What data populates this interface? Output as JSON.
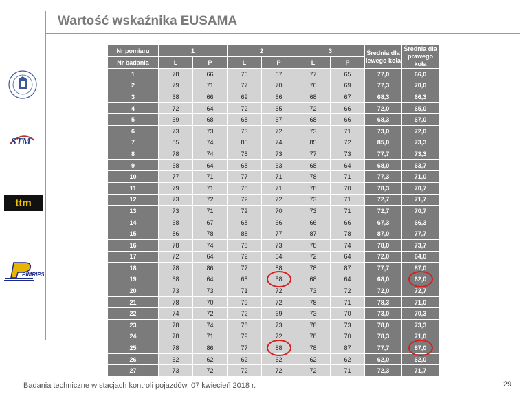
{
  "slide": {
    "title": "Wartość wskaźnika EUSAMA",
    "footer": "Badania techniczne w stacjach kontroli pojazdów, 07 kwiecień 2018 r.",
    "page_number": "29"
  },
  "logos": [
    "university-seal-logo",
    "stm-logo",
    "ttm-logo",
    "pimrips-logo"
  ],
  "logo_text": {
    "ttm": "ttm",
    "stm": "STM",
    "pim": "PIMRIPS"
  },
  "table": {
    "nr_pomiaru_label": "Nr pomiaru",
    "nr_badania_label": "Nr badania",
    "measurement_groups": [
      "1",
      "2",
      "3"
    ],
    "side_labels": [
      "L",
      "P",
      "L",
      "P",
      "L",
      "P"
    ],
    "avg_left_label": "Średnia dla lewego koła",
    "avg_right_label": "Średnia dla prawego koła",
    "rows": [
      {
        "nr": "1",
        "v": [
          "78",
          "66",
          "76",
          "67",
          "77",
          "65"
        ],
        "avg_l": "77,0",
        "avg_r": "66,0"
      },
      {
        "nr": "2",
        "v": [
          "79",
          "71",
          "77",
          "70",
          "76",
          "69"
        ],
        "avg_l": "77,3",
        "avg_r": "70,0"
      },
      {
        "nr": "3",
        "v": [
          "68",
          "66",
          "69",
          "66",
          "68",
          "67"
        ],
        "avg_l": "68,3",
        "avg_r": "66,3"
      },
      {
        "nr": "4",
        "v": [
          "72",
          "64",
          "72",
          "65",
          "72",
          "66"
        ],
        "avg_l": "72,0",
        "avg_r": "65,0"
      },
      {
        "nr": "5",
        "v": [
          "69",
          "68",
          "68",
          "67",
          "68",
          "66"
        ],
        "avg_l": "68,3",
        "avg_r": "67,0"
      },
      {
        "nr": "6",
        "v": [
          "73",
          "73",
          "73",
          "72",
          "73",
          "71"
        ],
        "avg_l": "73,0",
        "avg_r": "72,0"
      },
      {
        "nr": "7",
        "v": [
          "85",
          "74",
          "85",
          "74",
          "85",
          "72"
        ],
        "avg_l": "85,0",
        "avg_r": "73,3"
      },
      {
        "nr": "8",
        "v": [
          "78",
          "74",
          "78",
          "73",
          "77",
          "73"
        ],
        "avg_l": "77,7",
        "avg_r": "73,3"
      },
      {
        "nr": "9",
        "v": [
          "68",
          "64",
          "68",
          "63",
          "68",
          "64"
        ],
        "avg_l": "68,0",
        "avg_r": "63,7"
      },
      {
        "nr": "10",
        "v": [
          "77",
          "71",
          "77",
          "71",
          "78",
          "71"
        ],
        "avg_l": "77,3",
        "avg_r": "71,0"
      },
      {
        "nr": "11",
        "v": [
          "79",
          "71",
          "78",
          "71",
          "78",
          "70"
        ],
        "avg_l": "78,3",
        "avg_r": "70,7"
      },
      {
        "nr": "12",
        "v": [
          "73",
          "72",
          "72",
          "72",
          "73",
          "71"
        ],
        "avg_l": "72,7",
        "avg_r": "71,7"
      },
      {
        "nr": "13",
        "v": [
          "73",
          "71",
          "72",
          "70",
          "73",
          "71"
        ],
        "avg_l": "72,7",
        "avg_r": "70,7"
      },
      {
        "nr": "14",
        "v": [
          "68",
          "67",
          "68",
          "66",
          "66",
          "66"
        ],
        "avg_l": "67,3",
        "avg_r": "66,3"
      },
      {
        "nr": "15",
        "v": [
          "86",
          "78",
          "88",
          "77",
          "87",
          "78"
        ],
        "avg_l": "87,0",
        "avg_r": "77,7"
      },
      {
        "nr": "16",
        "v": [
          "78",
          "74",
          "78",
          "73",
          "78",
          "74"
        ],
        "avg_l": "78,0",
        "avg_r": "73,7"
      },
      {
        "nr": "17",
        "v": [
          "72",
          "64",
          "72",
          "64",
          "72",
          "64"
        ],
        "avg_l": "72,0",
        "avg_r": "64,0"
      },
      {
        "nr": "18",
        "v": [
          "78",
          "86",
          "77",
          "88",
          "78",
          "87"
        ],
        "avg_l": "77,7",
        "avg_r": "87,0"
      },
      {
        "nr": "19",
        "v": [
          "68",
          "64",
          "68",
          "58",
          "68",
          "64"
        ],
        "avg_l": "68,0",
        "avg_r": "62,0"
      },
      {
        "nr": "20",
        "v": [
          "73",
          "73",
          "71",
          "72",
          "73",
          "72"
        ],
        "avg_l": "72,0",
        "avg_r": "72,7"
      },
      {
        "nr": "21",
        "v": [
          "78",
          "70",
          "79",
          "72",
          "78",
          "71"
        ],
        "avg_l": "78,3",
        "avg_r": "71,0"
      },
      {
        "nr": "22",
        "v": [
          "74",
          "72",
          "72",
          "69",
          "73",
          "70"
        ],
        "avg_l": "73,0",
        "avg_r": "70,3"
      },
      {
        "nr": "23",
        "v": [
          "78",
          "74",
          "78",
          "73",
          "78",
          "73"
        ],
        "avg_l": "78,0",
        "avg_r": "73,3"
      },
      {
        "nr": "24",
        "v": [
          "78",
          "71",
          "79",
          "72",
          "78",
          "70"
        ],
        "avg_l": "78,3",
        "avg_r": "71,0"
      },
      {
        "nr": "25",
        "v": [
          "78",
          "86",
          "77",
          "88",
          "78",
          "87"
        ],
        "avg_l": "77,7",
        "avg_r": "87,0"
      },
      {
        "nr": "26",
        "v": [
          "62",
          "62",
          "62",
          "62",
          "62",
          "62"
        ],
        "avg_l": "62,0",
        "avg_r": "62,0"
      },
      {
        "nr": "27",
        "v": [
          "73",
          "72",
          "72",
          "72",
          "72",
          "71"
        ],
        "avg_l": "72,3",
        "avg_r": "71,7"
      }
    ],
    "highlight_color": "#d62020",
    "highlighted_cells": [
      {
        "row": "19",
        "column": "2-P",
        "value": "58"
      },
      {
        "row": "19",
        "column": "avg_r",
        "value": "62,0"
      },
      {
        "row": "25",
        "column": "2-P",
        "value": "88"
      },
      {
        "row": "25",
        "column": "avg_r",
        "value": "87,0"
      }
    ]
  }
}
